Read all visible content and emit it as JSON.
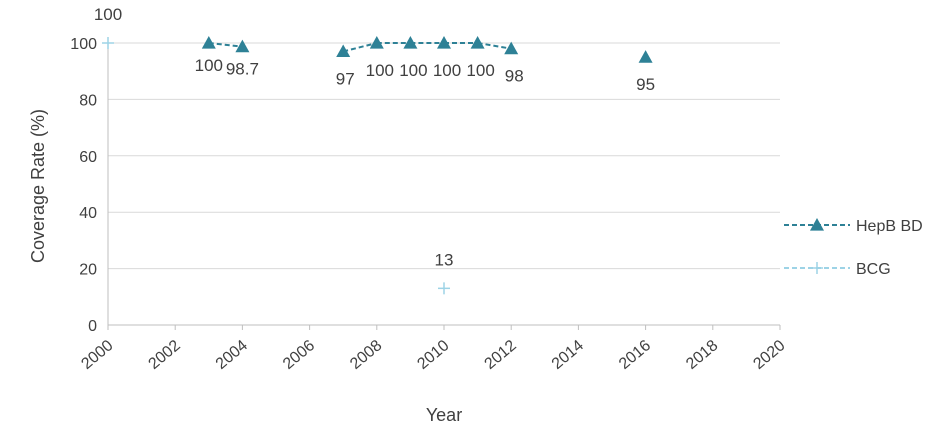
{
  "chart_data": {
    "type": "line",
    "title": "",
    "xlabel": "Year",
    "ylabel": "Coverage Rate (%)",
    "xlim": [
      2000,
      2020
    ],
    "ylim": [
      0,
      100
    ],
    "x_ticks": [
      "2000",
      "2002",
      "2004",
      "2006",
      "2008",
      "2010",
      "2012",
      "2014",
      "2016",
      "2018",
      "2020"
    ],
    "y_ticks": [
      "0",
      "20",
      "40",
      "60",
      "80",
      "100"
    ],
    "grid": true,
    "legend_position": "right",
    "series": [
      {
        "name": "HepB BD",
        "color": "#2E8196",
        "marker": "triangle",
        "line_style": "dashed",
        "points": [
          {
            "x": 2003,
            "y": 100,
            "label": "100"
          },
          {
            "x": 2004,
            "y": 98.7,
            "label": "98.7"
          },
          {
            "x": 2007,
            "y": 97,
            "label": "97"
          },
          {
            "x": 2008,
            "y": 100,
            "label": "100"
          },
          {
            "x": 2009,
            "y": 100,
            "label": "100"
          },
          {
            "x": 2010,
            "y": 100,
            "label": "100"
          },
          {
            "x": 2011,
            "y": 100,
            "label": "100"
          },
          {
            "x": 2012,
            "y": 98,
            "label": "98"
          },
          {
            "x": 2016,
            "y": 95,
            "label": "95"
          }
        ]
      },
      {
        "name": "BCG",
        "color": "#9DD3E6",
        "marker": "plus",
        "line_style": "dashed",
        "points": [
          {
            "x": 2000,
            "y": 100,
            "label": "100"
          },
          {
            "x": 2010,
            "y": 13,
            "label": "13"
          }
        ]
      }
    ]
  }
}
